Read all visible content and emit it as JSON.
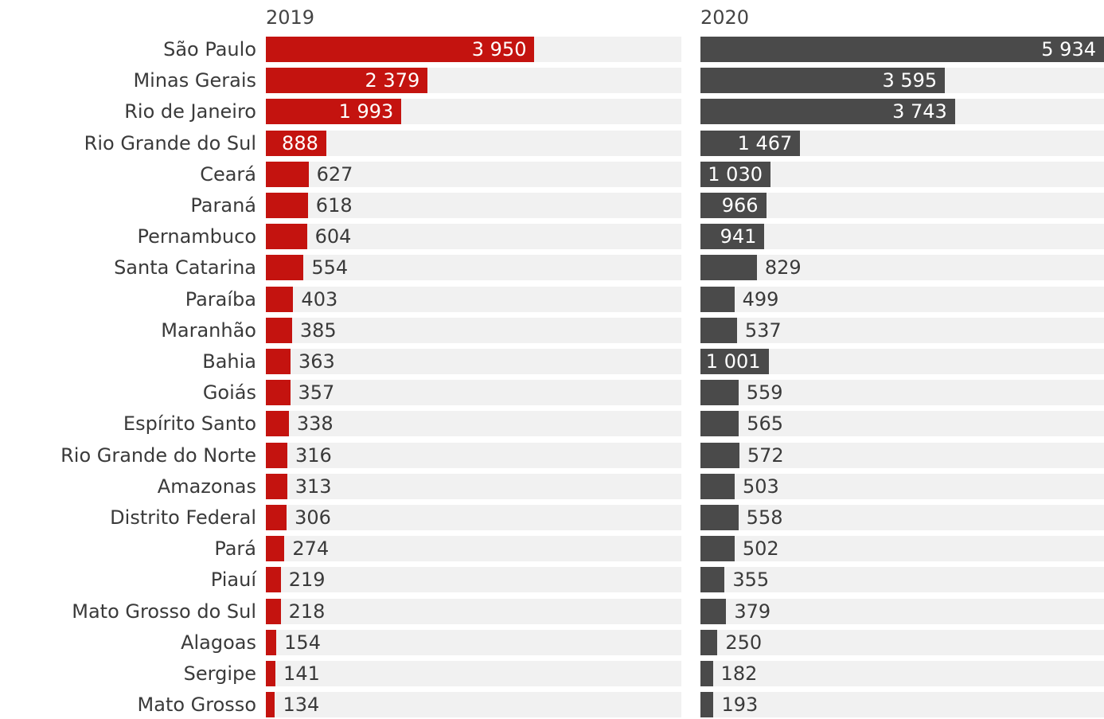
{
  "chart_data": {
    "type": "bar",
    "orientation": "horizontal",
    "title": "",
    "xlabel": "",
    "ylabel": "",
    "categories": [
      "São Paulo",
      "Minas Gerais",
      "Rio de Janeiro",
      "Rio Grande do Sul",
      "Ceará",
      "Paraná",
      "Pernambuco",
      "Santa Catarina",
      "Paraíba",
      "Maranhão",
      "Bahia",
      "Goiás",
      "Espírito Santo",
      "Rio Grande do Norte",
      "Amazonas",
      "Distrito Federal",
      "Pará",
      "Piauí",
      "Mato Grosso do Sul",
      "Alagoas",
      "Sergipe",
      "Mato Grosso"
    ],
    "series": [
      {
        "name": "2019",
        "color": "#c4130f",
        "values": [
          3950,
          2379,
          1993,
          888,
          627,
          618,
          604,
          554,
          403,
          385,
          363,
          357,
          338,
          316,
          313,
          306,
          274,
          219,
          218,
          154,
          141,
          134
        ],
        "labels": [
          "3 950",
          "2 379",
          "1 993",
          "888",
          "627",
          "618",
          "604",
          "554",
          "403",
          "385",
          "363",
          "357",
          "338",
          "316",
          "313",
          "306",
          "274",
          "219",
          "218",
          "154",
          "141",
          "134"
        ]
      },
      {
        "name": "2020",
        "color": "#4a4a4a",
        "values": [
          5934,
          3595,
          3743,
          1467,
          1030,
          966,
          941,
          829,
          499,
          537,
          1001,
          559,
          565,
          572,
          503,
          558,
          502,
          355,
          379,
          250,
          182,
          193
        ],
        "labels": [
          "5 934",
          "3 595",
          "3 743",
          "1 467",
          "1 030",
          "966",
          "941",
          "829",
          "499",
          "537",
          "1 001",
          "559",
          "565",
          "572",
          "503",
          "558",
          "502",
          "355",
          "379",
          "250",
          "182",
          "193"
        ]
      }
    ],
    "xlim": [
      0,
      5934
    ],
    "grid": false,
    "legend": "none"
  }
}
